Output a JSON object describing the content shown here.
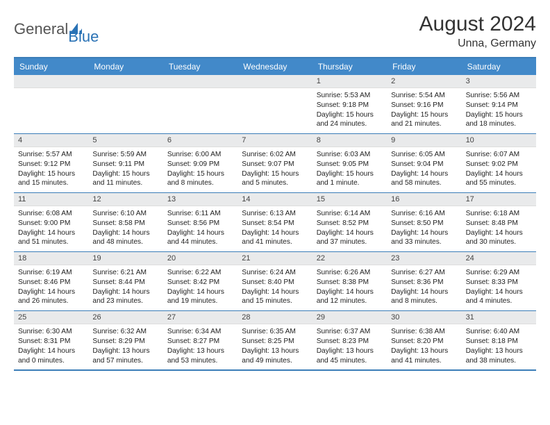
{
  "brand": {
    "name_part1": "General",
    "name_part2": "Blue"
  },
  "title": "August 2024",
  "location": "Unna, Germany",
  "colors": {
    "header_bg": "#4289c9",
    "border": "#3a7db8",
    "daynum_bg": "#e9eaeb",
    "text": "#222222",
    "logo_gray": "#555555",
    "logo_blue": "#2a72b5"
  },
  "day_headers": [
    "Sunday",
    "Monday",
    "Tuesday",
    "Wednesday",
    "Thursday",
    "Friday",
    "Saturday"
  ],
  "weeks": [
    [
      {
        "n": "",
        "empty": true
      },
      {
        "n": "",
        "empty": true
      },
      {
        "n": "",
        "empty": true
      },
      {
        "n": "",
        "empty": true
      },
      {
        "n": "1",
        "sunrise": "5:53 AM",
        "sunset": "9:18 PM",
        "daylight": "15 hours and 24 minutes."
      },
      {
        "n": "2",
        "sunrise": "5:54 AM",
        "sunset": "9:16 PM",
        "daylight": "15 hours and 21 minutes."
      },
      {
        "n": "3",
        "sunrise": "5:56 AM",
        "sunset": "9:14 PM",
        "daylight": "15 hours and 18 minutes."
      }
    ],
    [
      {
        "n": "4",
        "sunrise": "5:57 AM",
        "sunset": "9:12 PM",
        "daylight": "15 hours and 15 minutes."
      },
      {
        "n": "5",
        "sunrise": "5:59 AM",
        "sunset": "9:11 PM",
        "daylight": "15 hours and 11 minutes."
      },
      {
        "n": "6",
        "sunrise": "6:00 AM",
        "sunset": "9:09 PM",
        "daylight": "15 hours and 8 minutes."
      },
      {
        "n": "7",
        "sunrise": "6:02 AM",
        "sunset": "9:07 PM",
        "daylight": "15 hours and 5 minutes."
      },
      {
        "n": "8",
        "sunrise": "6:03 AM",
        "sunset": "9:05 PM",
        "daylight": "15 hours and 1 minute."
      },
      {
        "n": "9",
        "sunrise": "6:05 AM",
        "sunset": "9:04 PM",
        "daylight": "14 hours and 58 minutes."
      },
      {
        "n": "10",
        "sunrise": "6:07 AM",
        "sunset": "9:02 PM",
        "daylight": "14 hours and 55 minutes."
      }
    ],
    [
      {
        "n": "11",
        "sunrise": "6:08 AM",
        "sunset": "9:00 PM",
        "daylight": "14 hours and 51 minutes."
      },
      {
        "n": "12",
        "sunrise": "6:10 AM",
        "sunset": "8:58 PM",
        "daylight": "14 hours and 48 minutes."
      },
      {
        "n": "13",
        "sunrise": "6:11 AM",
        "sunset": "8:56 PM",
        "daylight": "14 hours and 44 minutes."
      },
      {
        "n": "14",
        "sunrise": "6:13 AM",
        "sunset": "8:54 PM",
        "daylight": "14 hours and 41 minutes."
      },
      {
        "n": "15",
        "sunrise": "6:14 AM",
        "sunset": "8:52 PM",
        "daylight": "14 hours and 37 minutes."
      },
      {
        "n": "16",
        "sunrise": "6:16 AM",
        "sunset": "8:50 PM",
        "daylight": "14 hours and 33 minutes."
      },
      {
        "n": "17",
        "sunrise": "6:18 AM",
        "sunset": "8:48 PM",
        "daylight": "14 hours and 30 minutes."
      }
    ],
    [
      {
        "n": "18",
        "sunrise": "6:19 AM",
        "sunset": "8:46 PM",
        "daylight": "14 hours and 26 minutes."
      },
      {
        "n": "19",
        "sunrise": "6:21 AM",
        "sunset": "8:44 PM",
        "daylight": "14 hours and 23 minutes."
      },
      {
        "n": "20",
        "sunrise": "6:22 AM",
        "sunset": "8:42 PM",
        "daylight": "14 hours and 19 minutes."
      },
      {
        "n": "21",
        "sunrise": "6:24 AM",
        "sunset": "8:40 PM",
        "daylight": "14 hours and 15 minutes."
      },
      {
        "n": "22",
        "sunrise": "6:26 AM",
        "sunset": "8:38 PM",
        "daylight": "14 hours and 12 minutes."
      },
      {
        "n": "23",
        "sunrise": "6:27 AM",
        "sunset": "8:36 PM",
        "daylight": "14 hours and 8 minutes."
      },
      {
        "n": "24",
        "sunrise": "6:29 AM",
        "sunset": "8:33 PM",
        "daylight": "14 hours and 4 minutes."
      }
    ],
    [
      {
        "n": "25",
        "sunrise": "6:30 AM",
        "sunset": "8:31 PM",
        "daylight": "14 hours and 0 minutes."
      },
      {
        "n": "26",
        "sunrise": "6:32 AM",
        "sunset": "8:29 PM",
        "daylight": "13 hours and 57 minutes."
      },
      {
        "n": "27",
        "sunrise": "6:34 AM",
        "sunset": "8:27 PM",
        "daylight": "13 hours and 53 minutes."
      },
      {
        "n": "28",
        "sunrise": "6:35 AM",
        "sunset": "8:25 PM",
        "daylight": "13 hours and 49 minutes."
      },
      {
        "n": "29",
        "sunrise": "6:37 AM",
        "sunset": "8:23 PM",
        "daylight": "13 hours and 45 minutes."
      },
      {
        "n": "30",
        "sunrise": "6:38 AM",
        "sunset": "8:20 PM",
        "daylight": "13 hours and 41 minutes."
      },
      {
        "n": "31",
        "sunrise": "6:40 AM",
        "sunset": "8:18 PM",
        "daylight": "13 hours and 38 minutes."
      }
    ]
  ],
  "labels": {
    "sunrise": "Sunrise:",
    "sunset": "Sunset:",
    "daylight": "Daylight:"
  }
}
